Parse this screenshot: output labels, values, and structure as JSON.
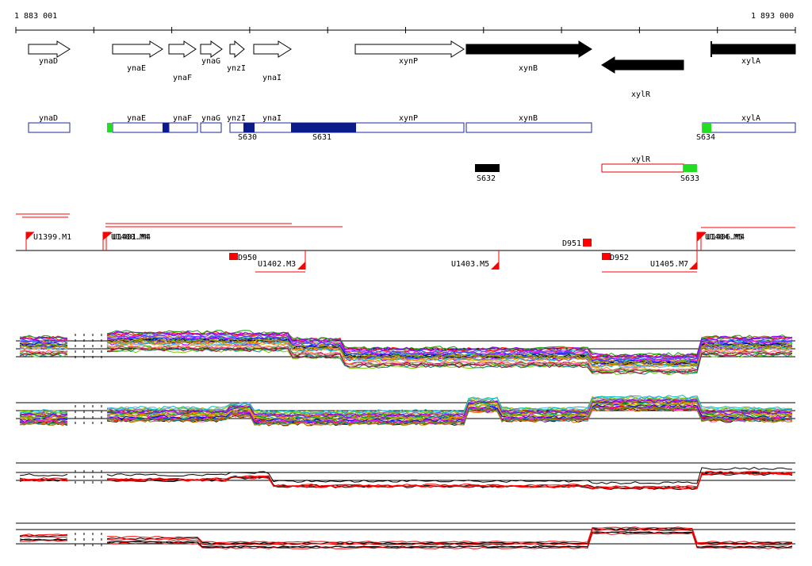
{
  "coordinate_axis": {
    "start_label": "1 883 001",
    "end_label": "1 893 000"
  },
  "genes": [
    {
      "name": "ynaD",
      "strand": "+",
      "style": "open"
    },
    {
      "name": "ynaE",
      "strand": "+",
      "style": "open"
    },
    {
      "name": "ynaF",
      "strand": "+",
      "style": "open"
    },
    {
      "name": "ynaG",
      "strand": "+",
      "style": "open"
    },
    {
      "name": "ynzI",
      "strand": "+",
      "style": "open"
    },
    {
      "name": "ynaI",
      "strand": "+",
      "style": "open"
    },
    {
      "name": "xynP",
      "strand": "+",
      "style": "open"
    },
    {
      "name": "xynB",
      "strand": "+",
      "style": "filled"
    },
    {
      "name": "xylR",
      "strand": "-",
      "style": "filled"
    },
    {
      "name": "xylA",
      "strand": "+",
      "style": "filled"
    }
  ],
  "operon_blocks": [
    {
      "name": "ynaD"
    },
    {
      "name": "ynaE"
    },
    {
      "name": "ynaF"
    },
    {
      "name": "ynaG"
    },
    {
      "name": "ynzI"
    },
    {
      "name": "ynaI"
    },
    {
      "name": "xynP"
    },
    {
      "name": "xynB"
    },
    {
      "name": "xylA"
    },
    {
      "name": "xylR"
    }
  ],
  "sigma_sites": [
    {
      "label": "S630",
      "color": "#0b1b8c"
    },
    {
      "label": "S631",
      "color": "#0b1b8c"
    },
    {
      "label": "S632",
      "color": "#000000"
    },
    {
      "label": "S633",
      "color": "#22dd22"
    },
    {
      "label": "S634",
      "color": "#22dd22"
    }
  ],
  "transcription_units": [
    {
      "label": "U1399.M1",
      "strand": "+"
    },
    {
      "label": "U1400.M4",
      "strand": "+"
    },
    {
      "label": "U1401.M4",
      "strand": "+"
    },
    {
      "label": "U1402.M3",
      "strand": "-"
    },
    {
      "label": "U1403.M5",
      "strand": "-"
    },
    {
      "label": "U1405.M7",
      "strand": "-"
    },
    {
      "label": "U1404.M5",
      "strand": "+"
    },
    {
      "label": "U1406.M4",
      "strand": "+"
    }
  ],
  "downshifts": [
    {
      "label": "D950",
      "strand": "-"
    },
    {
      "label": "D951",
      "strand": "+"
    },
    {
      "label": "D952",
      "strand": "-"
    }
  ],
  "colors": {
    "operon_outline": "#1a2a9c",
    "operon_fill_dark": "#0b1b8c",
    "marker_red": "#ff0000",
    "site_green": "#22dd22"
  },
  "expression_panels": [
    {
      "strand": "+",
      "kind": "multi-condition"
    },
    {
      "strand": "-",
      "kind": "multi-condition"
    },
    {
      "strand": "+",
      "kind": "fit-vs-observed"
    },
    {
      "strand": "-",
      "kind": "fit-vs-observed"
    }
  ]
}
